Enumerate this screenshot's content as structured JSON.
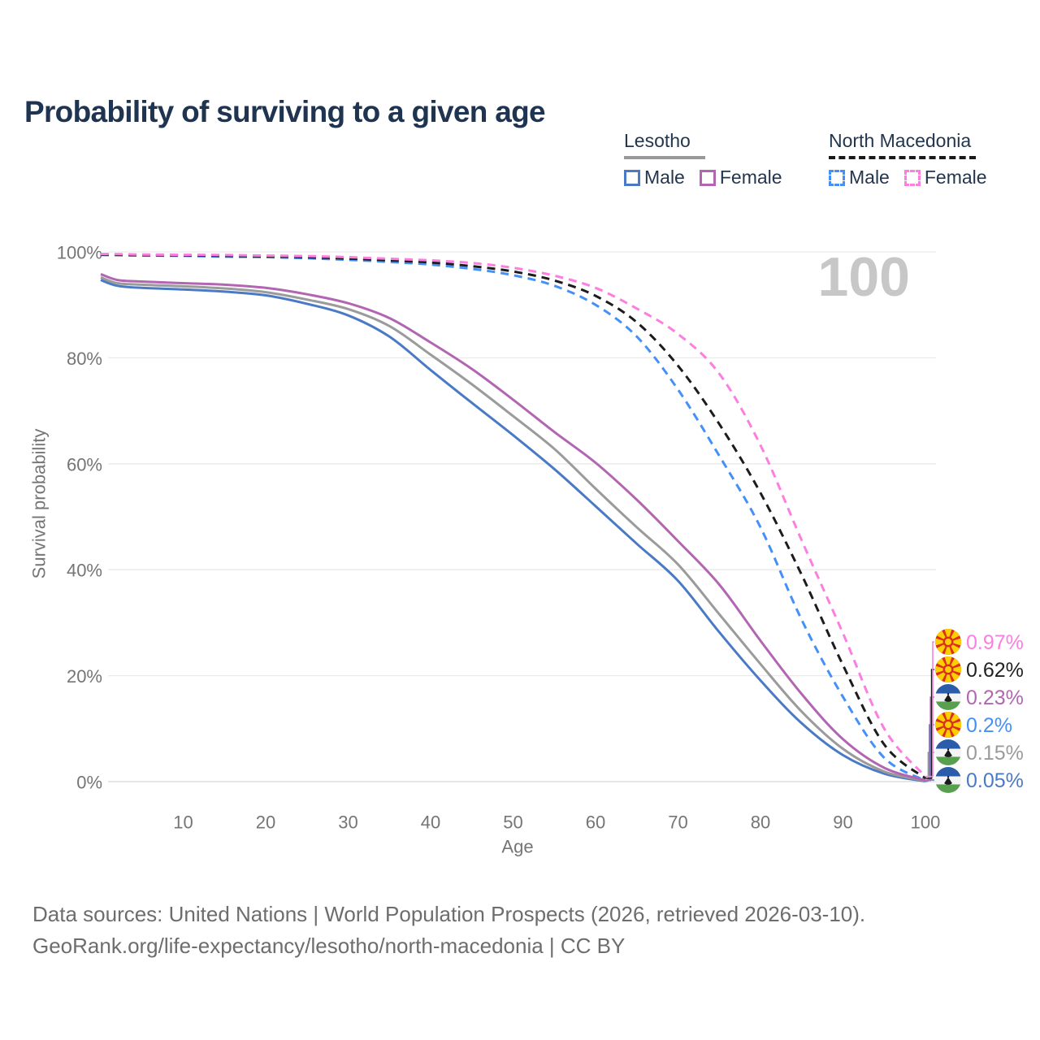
{
  "title": "Probability of surviving to a given age",
  "legend": {
    "groups": [
      {
        "title": "Lesotho",
        "line_style": "solid",
        "underline_color": "#999999",
        "items": [
          {
            "label": "Male",
            "color": "#4a7ac5"
          },
          {
            "label": "Female",
            "color": "#b266b2"
          }
        ]
      },
      {
        "title": "North Macedonia",
        "line_style": "dashed",
        "underline_color": "#1a1a1a",
        "items": [
          {
            "label": "Male",
            "color": "#4590f7"
          },
          {
            "label": "Female",
            "color": "#fc7ee0"
          }
        ]
      }
    ]
  },
  "chart_data": {
    "type": "line",
    "title": "Probability of surviving to a given age",
    "xlabel": "Age",
    "ylabel": "Survival probability",
    "xlim": [
      0,
      100
    ],
    "ylim": [
      0,
      100
    ],
    "grid": "horizontal-only",
    "x_ticks": [
      10,
      20,
      30,
      40,
      50,
      60,
      70,
      80,
      90,
      100
    ],
    "y_ticks": [
      {
        "value": 0,
        "label": "0%"
      },
      {
        "value": 20,
        "label": "20%"
      },
      {
        "value": 40,
        "label": "40%"
      },
      {
        "value": 60,
        "label": "60%"
      },
      {
        "value": 80,
        "label": "80%"
      },
      {
        "value": 100,
        "label": "100%"
      }
    ],
    "watermark": "100",
    "ages": [
      0,
      2,
      5,
      10,
      15,
      20,
      25,
      30,
      35,
      40,
      45,
      50,
      55,
      60,
      65,
      70,
      75,
      80,
      85,
      90,
      95,
      100
    ],
    "series": [
      {
        "name": "North Macedonia Female",
        "country": "North Macedonia",
        "sex": "Female",
        "color": "#fc7ee0",
        "dash": true,
        "flag": "north_macedonia",
        "end_label": "0.97%",
        "values": [
          99.6,
          99.57,
          99.5,
          99.45,
          99.4,
          99.3,
          99.2,
          99.0,
          98.7,
          98.4,
          97.9,
          97.0,
          95.5,
          93.2,
          89.3,
          84.5,
          77.0,
          63.5,
          45.5,
          28.0,
          10.0,
          0.97
        ]
      },
      {
        "name": "North Macedonia Both sexes",
        "country": "North Macedonia",
        "sex": "Both sexes",
        "color": "#1c1c1c",
        "dash": true,
        "flag": "north_macedonia",
        "end_label": "0.62%",
        "values": [
          99.5,
          99.47,
          99.4,
          99.35,
          99.25,
          99.15,
          99.0,
          98.75,
          98.4,
          98.0,
          97.3,
          96.3,
          94.6,
          91.7,
          86.7,
          78.5,
          67.5,
          54.5,
          39.0,
          22.0,
          7.0,
          0.62
        ]
      },
      {
        "name": "Lesotho Female",
        "country": "Lesotho",
        "sex": "Female",
        "color": "#b266b2",
        "dash": false,
        "flag": "lesotho",
        "end_label": "0.23%",
        "values": [
          95.8,
          94.7,
          94.4,
          94.1,
          93.8,
          93.2,
          92.0,
          90.3,
          87.5,
          82.9,
          77.9,
          72.1,
          66.0,
          60.2,
          53.2,
          45.4,
          37.2,
          26.6,
          16.5,
          8.0,
          2.6,
          0.23
        ]
      },
      {
        "name": "North Macedonia Male",
        "country": "North Macedonia",
        "sex": "Male",
        "color": "#4590f7",
        "dash": true,
        "flag": "north_macedonia",
        "end_label": "0.2%",
        "values": [
          99.4,
          99.37,
          99.3,
          99.25,
          99.1,
          99.0,
          98.8,
          98.5,
          98.1,
          97.6,
          96.8,
          95.6,
          93.6,
          90.0,
          84.0,
          74.0,
          61.5,
          48.0,
          30.5,
          16.0,
          4.5,
          0.2
        ]
      },
      {
        "name": "Lesotho Both sexes",
        "country": "Lesotho",
        "sex": "Both sexes",
        "color": "#9b9b9b",
        "dash": false,
        "flag": "lesotho",
        "end_label": "0.15%",
        "values": [
          95.2,
          94.1,
          93.8,
          93.5,
          93.1,
          92.4,
          91.0,
          89.2,
          86.0,
          80.6,
          75.0,
          69.0,
          62.8,
          55.3,
          48.0,
          41.0,
          31.6,
          22.2,
          13.2,
          6.2,
          1.9,
          0.15
        ]
      },
      {
        "name": "Lesotho Male",
        "country": "Lesotho",
        "sex": "Male",
        "color": "#4a7ac5",
        "dash": false,
        "flag": "lesotho",
        "end_label": "0.05%",
        "values": [
          94.7,
          93.6,
          93.2,
          92.9,
          92.5,
          91.8,
          90.2,
          88.0,
          84.0,
          77.7,
          71.5,
          65.4,
          59.0,
          52.0,
          44.9,
          37.9,
          28.2,
          19.1,
          11.0,
          5.0,
          1.5,
          0.05
        ]
      }
    ],
    "flag_colors": {
      "north_macedonia": {
        "background": "#d8301f",
        "sun": "#ffce00"
      },
      "lesotho": {
        "top": "#2a5caa",
        "middle": "#f4f4f4",
        "bottom": "#58a050",
        "hat": "#1a1a1a"
      }
    },
    "axis_colors": {
      "tick_text": "#757575",
      "gridline": "#eaeaea",
      "baseline": "#d8d8d8",
      "watermark": "#c7c7c7"
    }
  },
  "footer": {
    "line1": "Data sources: United Nations | World Population Prospects (2026, retrieved 2026-03-10).",
    "line2": "GeoRank.org/life-expectancy/lesotho/north-macedonia | CC BY"
  }
}
